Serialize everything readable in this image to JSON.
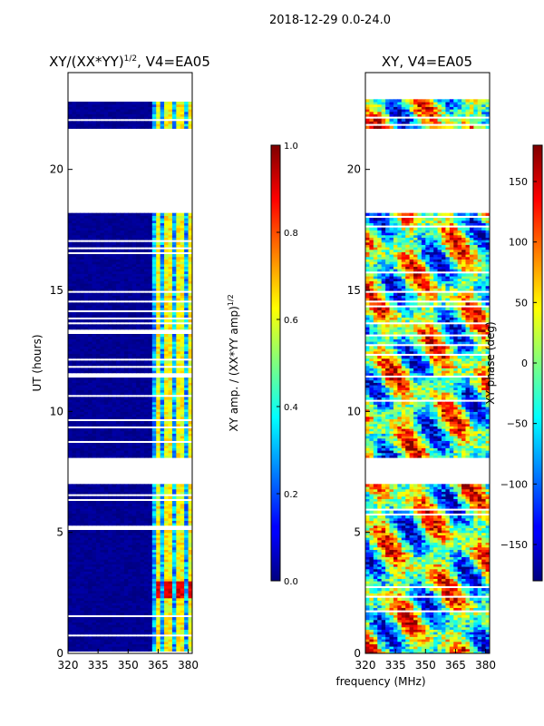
{
  "chart_data": {
    "type": "heatmap",
    "suptitle": "2018-12-29 0.0-24.0",
    "xlabel": "frequency (MHz)",
    "panels": [
      {
        "id": "amp",
        "title": "XY/(XX*YY)",
        "title_sup": "1/2",
        "title_tail": ", V4=EA05",
        "ylabel": "UT (hours)",
        "xlim": [
          320,
          382
        ],
        "ylim": [
          0,
          24
        ],
        "xticks": [
          320,
          335,
          350,
          365,
          380
        ],
        "yticks": [
          0,
          5,
          10,
          15,
          20
        ],
        "observed_ut_blocks": [
          [
            0.0,
            7.0
          ],
          [
            8.1,
            13.6
          ],
          [
            13.7,
            18.2
          ],
          [
            21.7,
            22.9
          ]
        ],
        "hot_channels_mhz": [
          364,
          369,
          375,
          380
        ],
        "background_level": 0.0,
        "channel_level": 0.55,
        "peak_level": 0.95,
        "peak_ut_range": [
          2.3,
          3.0
        ]
      },
      {
        "id": "phase",
        "title": "XY, V4=EA05",
        "xlim": [
          320,
          382
        ],
        "ylim": [
          0,
          24
        ],
        "xticks": [
          320,
          335,
          350,
          365,
          380
        ],
        "yticks": [
          0,
          5,
          10,
          15,
          20
        ],
        "observed_ut_blocks": [
          [
            0.0,
            7.0
          ],
          [
            8.1,
            13.6
          ],
          [
            13.7,
            18.2
          ],
          [
            21.7,
            22.9
          ]
        ]
      }
    ],
    "colorbars": [
      {
        "label": "XY amp. / (XX*YY amp)",
        "label_sup": "1/2",
        "range": [
          0.0,
          1.0
        ],
        "tick_labels": [
          "0.0",
          "0.2",
          "0.4",
          "0.6",
          "0.8",
          "1.0"
        ]
      },
      {
        "label": "XY phase (deg)",
        "range": [
          -180,
          180
        ],
        "tick_labels": [
          "−150",
          "−100",
          "−50",
          "0",
          "50",
          "100",
          "150"
        ]
      }
    ]
  }
}
